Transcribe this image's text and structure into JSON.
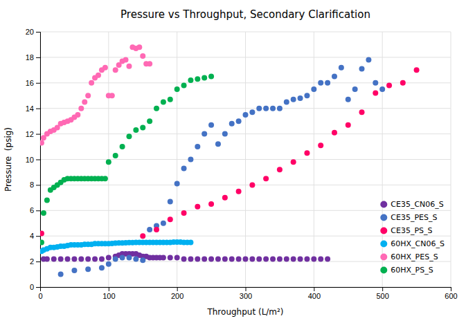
{
  "chart_data": {
    "type": "scatter",
    "title": "Pressure vs Throughput, Secondary Clarification",
    "xlabel": "Throughput (L/m²)",
    "ylabel": "Pressure  (psig)",
    "xlim": [
      0,
      600
    ],
    "ylim": [
      0,
      20
    ],
    "xticks": [
      0,
      100,
      200,
      300,
      400,
      500,
      600
    ],
    "yticks": [
      0,
      2,
      4,
      6,
      8,
      10,
      12,
      14,
      16,
      18,
      20
    ],
    "grid": true,
    "legend": "lower right",
    "series": [
      {
        "name": "CE35_CN06_S",
        "color": "#7030A0",
        "x": [
          5,
          10,
          20,
          30,
          40,
          50,
          60,
          70,
          80,
          90,
          100,
          110,
          115,
          120,
          125,
          130,
          135,
          140,
          145,
          150,
          155,
          160,
          165,
          170,
          175,
          180,
          190,
          200,
          210,
          220,
          230,
          240,
          250,
          260,
          270,
          280,
          290,
          300,
          310,
          320,
          330,
          340,
          350,
          360,
          370,
          380,
          390,
          400,
          410,
          420
        ],
        "values": [
          2.2,
          2.2,
          2.2,
          2.2,
          2.2,
          2.2,
          2.2,
          2.2,
          2.2,
          2.2,
          2.3,
          2.4,
          2.5,
          2.6,
          2.6,
          2.6,
          2.6,
          2.6,
          2.5,
          2.4,
          2.4,
          2.3,
          2.3,
          2.3,
          2.3,
          2.3,
          2.3,
          2.3,
          2.2,
          2.2,
          2.2,
          2.2,
          2.2,
          2.2,
          2.2,
          2.2,
          2.2,
          2.2,
          2.2,
          2.2,
          2.2,
          2.2,
          2.2,
          2.2,
          2.2,
          2.2,
          2.2,
          2.2,
          2.2,
          2.2
        ]
      },
      {
        "name": "CE35_PES_S",
        "color": "#4472C4",
        "x": [
          30,
          50,
          70,
          90,
          100,
          110,
          120,
          130,
          140,
          150,
          160,
          170,
          180,
          190,
          200,
          210,
          220,
          230,
          240,
          250,
          260,
          270,
          280,
          290,
          300,
          310,
          320,
          330,
          340,
          350,
          360,
          370,
          380,
          390,
          400,
          410,
          420,
          430,
          440,
          450,
          460,
          470,
          480,
          490,
          500
        ],
        "values": [
          1.0,
          1.3,
          1.4,
          1.5,
          1.8,
          2.2,
          2.3,
          2.3,
          2.2,
          2.1,
          4.5,
          4.8,
          5.0,
          6.7,
          8.1,
          9.3,
          10.0,
          11.0,
          12.0,
          12.7,
          11.2,
          12.0,
          12.8,
          13.0,
          13.5,
          13.7,
          14.0,
          14.0,
          14.0,
          14.0,
          14.5,
          14.7,
          14.8,
          15.0,
          15.5,
          16.0,
          16.0,
          16.5,
          17.2,
          14.7,
          15.5,
          17.1,
          17.8,
          16.0,
          15.5
        ]
      },
      {
        "name": "CE35_PS_S",
        "color": "#FF0066",
        "x": [
          2,
          150,
          170,
          190,
          210,
          230,
          250,
          270,
          290,
          310,
          330,
          350,
          370,
          390,
          410,
          430,
          450,
          470,
          490,
          510,
          530,
          550
        ],
        "values": [
          4.2,
          4.0,
          4.5,
          5.3,
          5.8,
          6.3,
          6.5,
          7.0,
          7.5,
          8.0,
          8.5,
          9.2,
          9.8,
          10.5,
          11.1,
          12.1,
          12.7,
          13.7,
          15.2,
          15.8,
          16.0,
          17.0
        ]
      },
      {
        "name": "60HX_CN06_S",
        "color": "#00B0F0",
        "x": [
          2,
          5,
          10,
          15,
          20,
          25,
          30,
          35,
          40,
          45,
          50,
          55,
          60,
          65,
          70,
          75,
          80,
          85,
          90,
          95,
          100,
          105,
          110,
          115,
          120,
          125,
          130,
          135,
          140,
          145,
          150,
          155,
          160,
          165,
          170,
          175,
          180,
          185,
          190,
          195,
          200,
          205,
          210,
          215,
          220
        ],
        "values": [
          2.8,
          2.9,
          3.0,
          3.1,
          3.1,
          3.15,
          3.2,
          3.2,
          3.25,
          3.3,
          3.3,
          3.3,
          3.3,
          3.35,
          3.35,
          3.35,
          3.4,
          3.4,
          3.4,
          3.4,
          3.4,
          3.42,
          3.44,
          3.45,
          3.45,
          3.47,
          3.48,
          3.48,
          3.5,
          3.5,
          3.5,
          3.5,
          3.5,
          3.5,
          3.5,
          3.5,
          3.5,
          3.5,
          3.5,
          3.52,
          3.52,
          3.52,
          3.5,
          3.5,
          3.5
        ]
      },
      {
        "name": "60HX_PES_S",
        "color": "#FF69B4",
        "x": [
          2,
          5,
          10,
          15,
          20,
          25,
          30,
          35,
          40,
          45,
          50,
          55,
          60,
          65,
          70,
          75,
          80,
          85,
          90,
          95,
          100,
          105,
          110,
          115,
          120,
          125,
          130,
          135,
          140,
          145,
          150,
          155,
          160
        ],
        "values": [
          11.3,
          11.7,
          12.0,
          12.2,
          12.3,
          12.5,
          12.8,
          12.9,
          13.0,
          13.1,
          13.3,
          13.5,
          14.0,
          14.5,
          15.0,
          16.0,
          16.4,
          16.6,
          17.0,
          17.2,
          15.0,
          15.0,
          17.0,
          17.4,
          17.7,
          17.8,
          17.3,
          18.8,
          18.7,
          18.8,
          18.1,
          17.5,
          17.5
        ]
      },
      {
        "name": "60HX_PS_S",
        "color": "#00B050",
        "x": [
          2,
          5,
          10,
          15,
          20,
          25,
          30,
          35,
          40,
          45,
          50,
          55,
          60,
          65,
          70,
          75,
          80,
          85,
          90,
          95,
          100,
          110,
          120,
          130,
          140,
          150,
          160,
          170,
          180,
          190,
          200,
          210,
          220,
          230,
          240,
          250
        ],
        "values": [
          3.5,
          5.8,
          6.8,
          7.6,
          7.8,
          8.0,
          8.2,
          8.4,
          8.5,
          8.5,
          8.5,
          8.5,
          8.5,
          8.5,
          8.5,
          8.5,
          8.5,
          8.5,
          8.5,
          8.5,
          9.8,
          10.3,
          11.0,
          11.8,
          12.3,
          12.5,
          13.0,
          14.0,
          14.5,
          14.7,
          15.5,
          15.8,
          16.2,
          16.3,
          16.4,
          16.5
        ]
      }
    ]
  }
}
